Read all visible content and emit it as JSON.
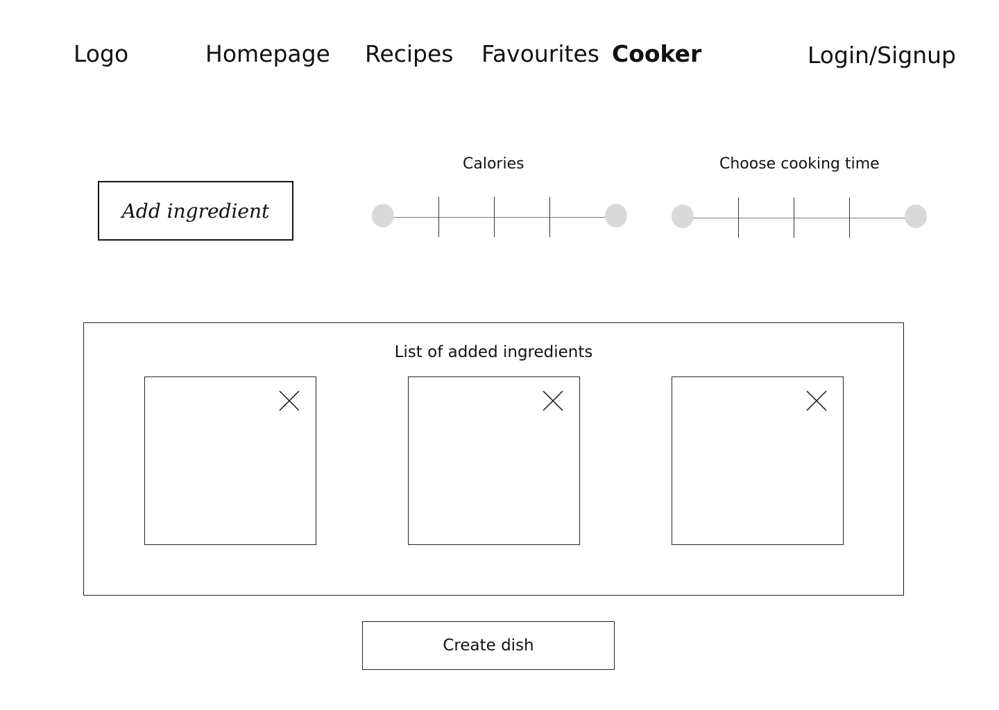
{
  "nav": {
    "logo": "Logo",
    "homepage": "Homepage",
    "recipes": "Recipes",
    "favourites": "Favourites",
    "cooker": "Cooker",
    "login": "Login/Signup",
    "active_item": "Cooker"
  },
  "controls": {
    "add_ingredient_label": "Add ingredient",
    "calories_label": "Calories",
    "cooking_time_label": "Choose cooking time"
  },
  "ingredients_list": {
    "title": "List of added ingredients",
    "items": [
      {
        "remove_icon": "close-icon"
      },
      {
        "remove_icon": "close-icon"
      },
      {
        "remove_icon": "close-icon"
      }
    ]
  },
  "actions": {
    "create_dish_label": "Create dish"
  },
  "colors": {
    "text": "#111111",
    "slider_knob": "#d9d9d9",
    "border": "#222222"
  }
}
